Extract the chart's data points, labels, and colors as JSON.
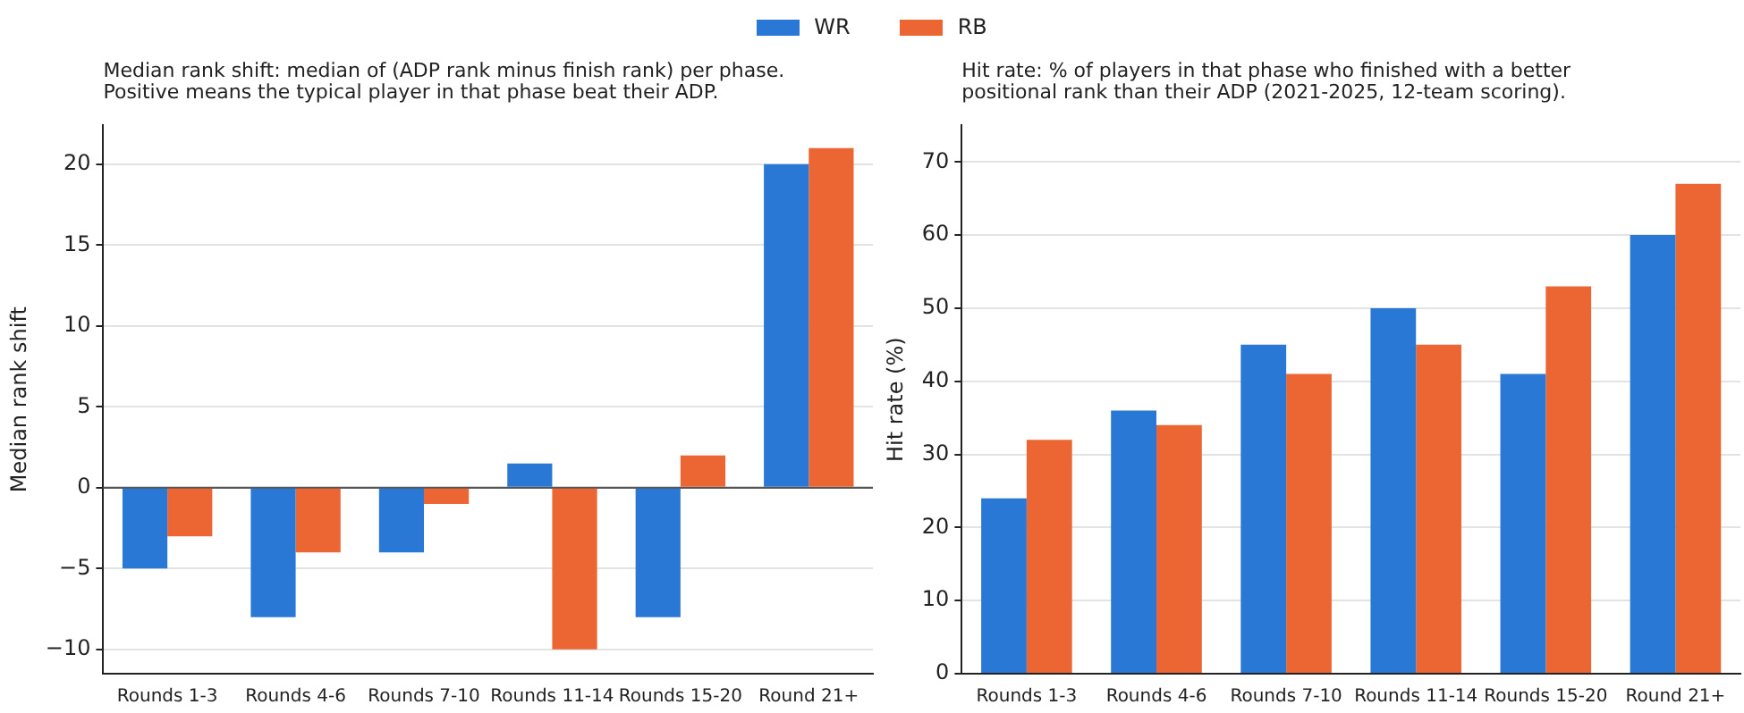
{
  "chart_data": [
    {
      "type": "bar",
      "title": "Median rank shift: median of (ADP rank minus finish rank) per phase.\nPositive means the typical player in that phase beat their ADP.",
      "ylabel": "Median rank shift",
      "categories": [
        "Rounds 1-3",
        "Rounds 4-6",
        "Rounds 7-10",
        "Rounds 11-14",
        "Rounds 15-20",
        "Round 21+"
      ],
      "series": [
        {
          "name": "WR",
          "color": "#2a78d6",
          "values": [
            -5,
            -8,
            -4,
            1.5,
            -8,
            20
          ]
        },
        {
          "name": "RB",
          "color": "#eb6633",
          "values": [
            -3,
            -4,
            -1,
            -10,
            2,
            21
          ]
        }
      ],
      "ylim": [
        -11.5,
        22.4
      ],
      "yticks": [
        -10,
        -5,
        0,
        5,
        10,
        15,
        20
      ],
      "grid": "y",
      "legend": "top",
      "ref_lines": [
        {
          "axis": "y",
          "value": 0,
          "color": "#555555"
        }
      ]
    },
    {
      "type": "bar",
      "title": "Hit rate: % of players in that phase who finished with a better\npositional rank than their ADP (2021-2025, 12-team scoring).",
      "ylabel": "Hit rate (%)",
      "categories": [
        "Rounds 1-3",
        "Rounds 4-6",
        "Rounds 7-10",
        "Rounds 11-14",
        "Rounds 15-20",
        "Round 21+"
      ],
      "series": [
        {
          "name": "WR",
          "color": "#2a78d6",
          "values": [
            24,
            36,
            45,
            50,
            41,
            60
          ]
        },
        {
          "name": "RB",
          "color": "#eb6633",
          "values": [
            32,
            34,
            41,
            45,
            53,
            67
          ]
        }
      ],
      "ylim": [
        0,
        75
      ],
      "yticks": [
        0,
        10,
        20,
        30,
        40,
        50,
        60,
        70
      ],
      "grid": "y",
      "legend": "top"
    }
  ]
}
